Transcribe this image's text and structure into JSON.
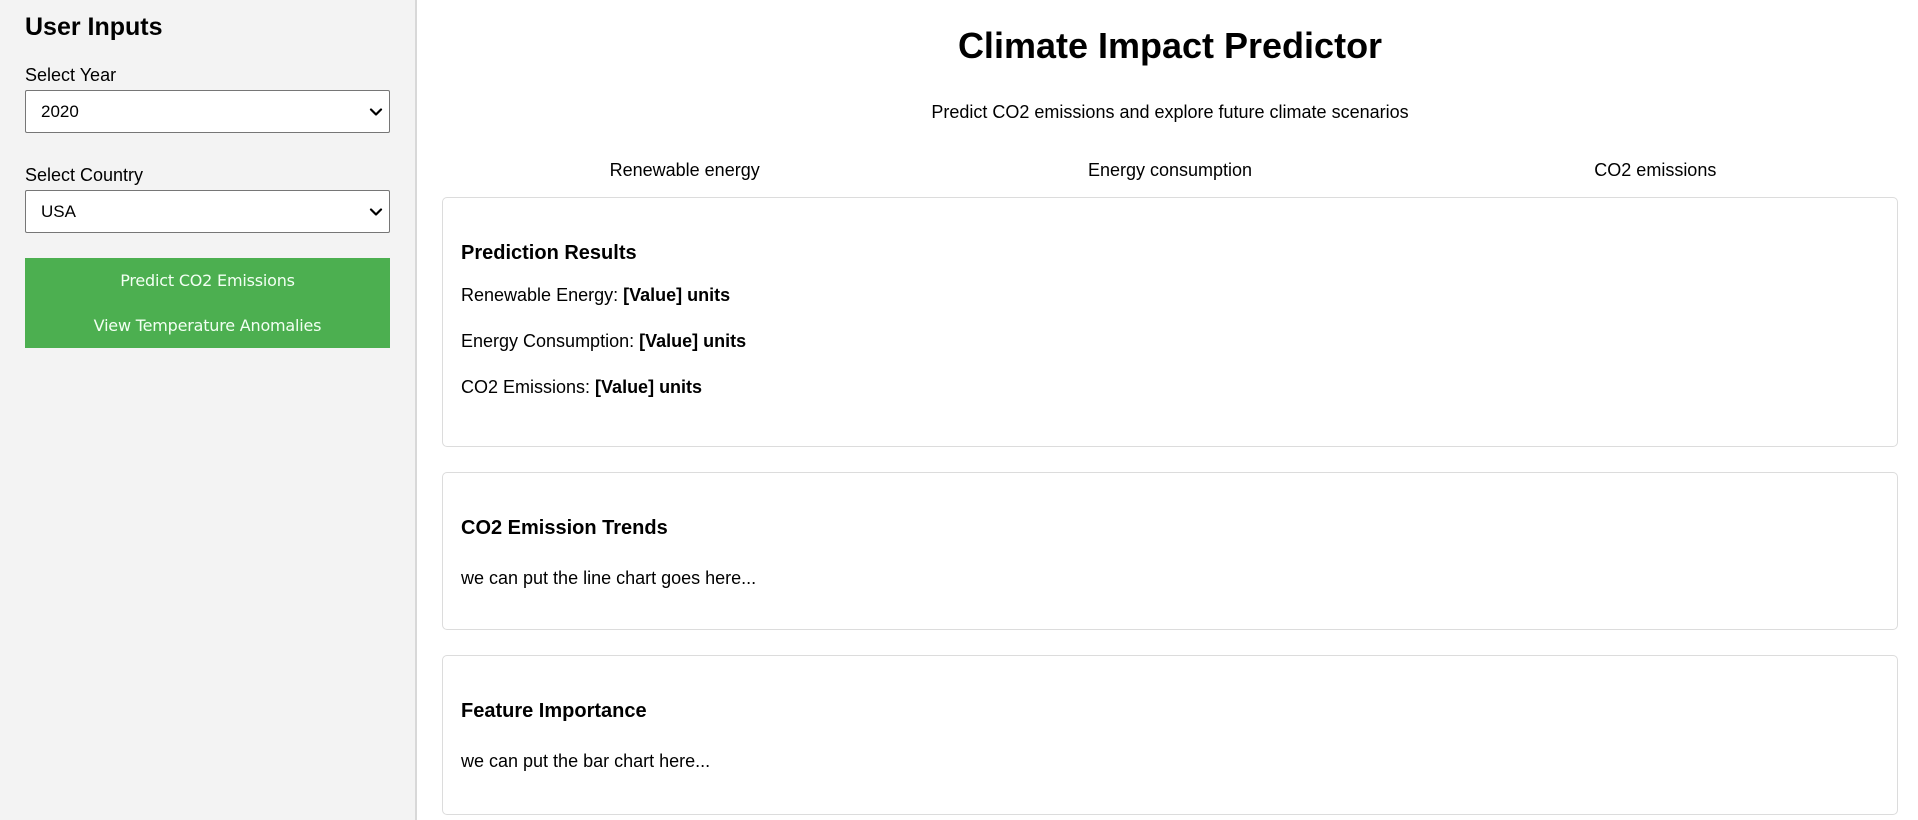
{
  "sidebar": {
    "title": "User Inputs",
    "year": {
      "label": "Select Year",
      "value": "2020"
    },
    "country": {
      "label": "Select Country",
      "value": "USA"
    },
    "actions": {
      "predict_label": "Predict CO2 Emissions",
      "anomalies_label": "View Temperature Anomalies",
      "color": "#4caf50"
    }
  },
  "header": {
    "title": "Climate Impact Predictor",
    "subtitle": "Predict CO2 emissions and explore future climate scenarios"
  },
  "tabs": [
    {
      "label": "Renewable energy"
    },
    {
      "label": "Energy consumption"
    },
    {
      "label": "CO2 emissions"
    }
  ],
  "results": {
    "title": "Prediction Results",
    "rows": [
      {
        "label": "Renewable Energy: ",
        "value": "[Value] units"
      },
      {
        "label": "Energy Consumption: ",
        "value": "[Value] units"
      },
      {
        "label": "CO2 Emissions: ",
        "value": "[Value] units"
      }
    ]
  },
  "trends": {
    "title": "CO2 Emission Trends",
    "placeholder": "we can put the line chart goes here..."
  },
  "features": {
    "title": "Feature Importance",
    "placeholder": "we can put the bar chart here..."
  }
}
